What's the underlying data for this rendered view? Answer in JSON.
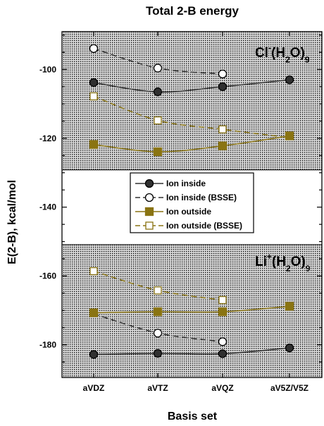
{
  "chart_data": {
    "type": "line",
    "title": "Total 2-B energy",
    "xlabel": "Basis set",
    "ylabel": "E(2-B), kcal/mol",
    "categories": [
      "aVDZ",
      "aVTZ",
      "aVQZ",
      "aV5Z/V5Z"
    ],
    "ylim": [
      -189.5,
      -89.0
    ],
    "yticks": [
      -180,
      -160,
      -140,
      -120,
      -100
    ],
    "grid": false,
    "legend_position": "center",
    "colors": {
      "inside": "#303030",
      "outside": "#8a7412",
      "band": "#d8d8d8"
    },
    "panels": [
      {
        "annotation": {
          "ion": "Cl",
          "charge": "-",
          "open": "(H",
          "sub": "2",
          "close": "O)",
          "n": "9"
        },
        "y_range": [
          -129.2,
          -89.0
        ],
        "series": [
          {
            "name": "Ion inside",
            "group": "inside",
            "dashed": false,
            "marker": "filled-circle",
            "values": [
              -103.8,
              -106.5,
              -105.0,
              -103.0
            ]
          },
          {
            "name": "Ion inside (BSSE)",
            "group": "inside",
            "dashed": true,
            "marker": "open-circle",
            "values": [
              -93.9,
              -99.6,
              -101.3,
              null
            ]
          },
          {
            "name": "Ion outside",
            "group": "outside",
            "dashed": false,
            "marker": "filled-square",
            "values": [
              -121.8,
              -123.9,
              -122.2,
              -119.3
            ]
          },
          {
            "name": "Ion outside (BSSE)",
            "group": "outside",
            "dashed": true,
            "marker": "open-square",
            "values": [
              -107.8,
              -114.8,
              -117.4,
              null
            ]
          }
        ]
      },
      {
        "annotation": {
          "ion": "Li",
          "charge": "+",
          "open": "(H",
          "sub": "2",
          "close": "O)",
          "n": "9"
        },
        "y_range": [
          -189.5,
          -150.9
        ],
        "series": [
          {
            "name": "Ion inside",
            "group": "inside",
            "dashed": false,
            "marker": "filled-circle",
            "values": [
              -182.8,
              -182.5,
              -182.6,
              -180.9
            ]
          },
          {
            "name": "Ion inside (BSSE)",
            "group": "inside",
            "dashed": true,
            "marker": "open-circle",
            "values": [
              null,
              -176.6,
              -179.1,
              null
            ]
          },
          {
            "name": "Ion outside",
            "group": "outside",
            "dashed": false,
            "marker": "filled-square",
            "values": [
              -170.7,
              -170.4,
              -170.4,
              -168.8
            ]
          },
          {
            "name": "Ion outside (BSSE)",
            "group": "outside",
            "dashed": true,
            "marker": "open-square",
            "values": [
              -158.6,
              -164.2,
              -167.0,
              null
            ]
          }
        ]
      }
    ],
    "legend": [
      {
        "label": "Ion inside",
        "group": "inside",
        "dashed": false,
        "marker": "filled-circle"
      },
      {
        "label": "Ion inside (BSSE)",
        "group": "inside",
        "dashed": true,
        "marker": "open-circle"
      },
      {
        "label": "Ion outside",
        "group": "outside",
        "dashed": false,
        "marker": "filled-square"
      },
      {
        "label": "Ion outside (BSSE)",
        "group": "outside",
        "dashed": true,
        "marker": "open-square"
      }
    ]
  }
}
